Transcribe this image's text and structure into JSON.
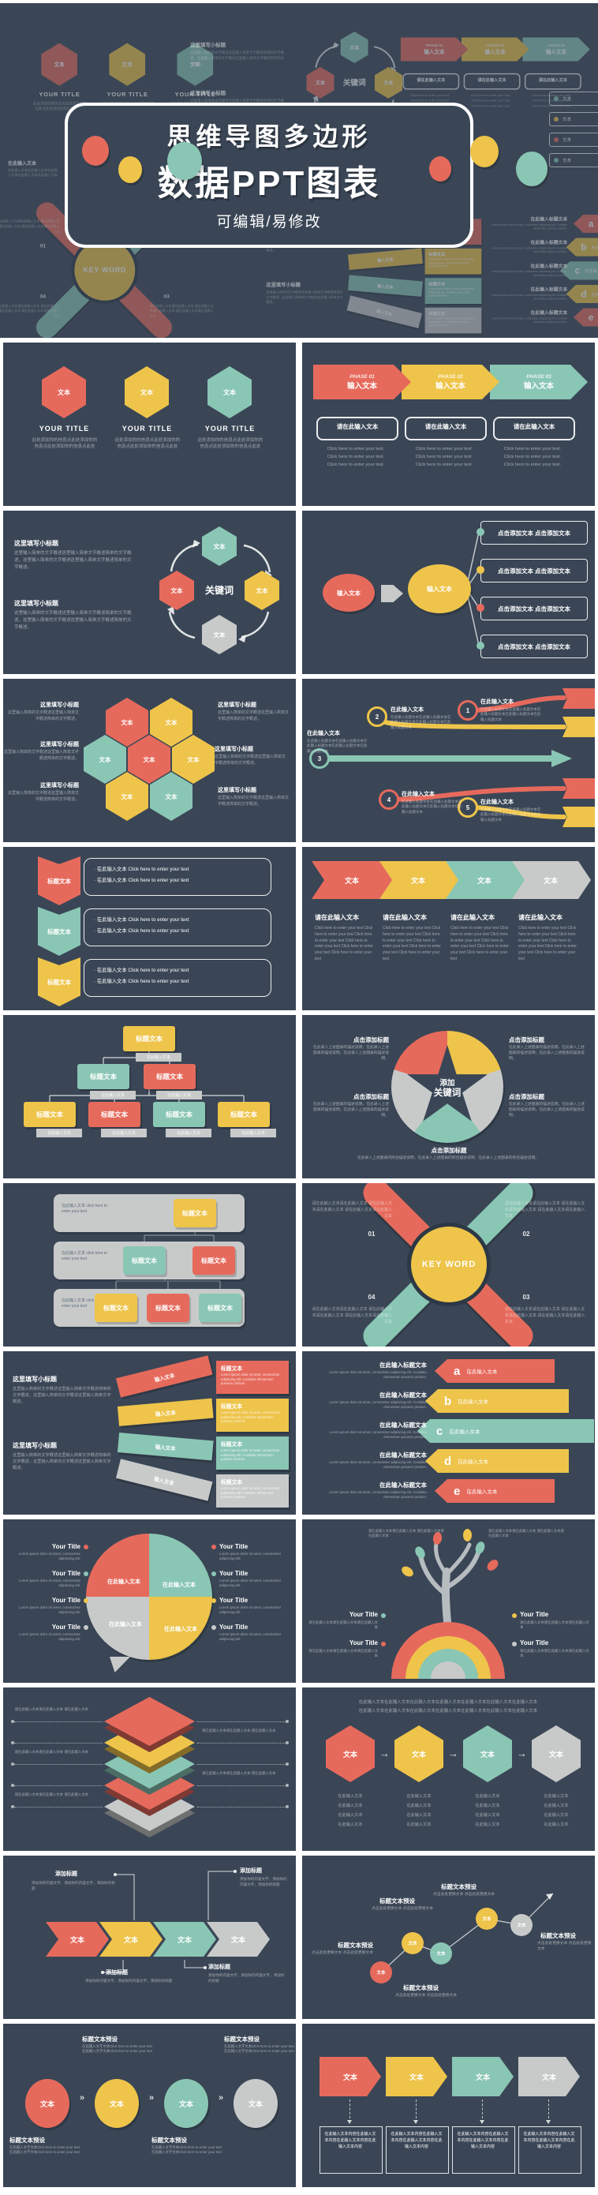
{
  "colors": {
    "navy": "#3a4656",
    "deep": "#2c3845",
    "red": "#e66a5c",
    "yellow": "#eec44a",
    "teal": "#8ac6b4",
    "gray": "#c8caca"
  },
  "hero": {
    "title_line1": "思维导图多边形",
    "title_line2": "数据PPT图表",
    "subtitle": "可编辑/易修改",
    "side_note_heading": "在此输入文本",
    "side_note_para": "在此输入文本在此输入文本在此输入文本在此输入文本在此输入文本",
    "edge_box_label": "文本"
  },
  "slides": [
    {
      "type": "hex-trio",
      "label": "文本",
      "title": "YOUR TITLE",
      "caption": "此处添加你的信息点此处添加你的信息点此处添加你的信息点此处"
    },
    {
      "type": "phase-arrows",
      "phases": [
        "PHASE 01",
        "PHASE 02",
        "PHASE 03"
      ],
      "label": "输入文本",
      "box": "请在此输入文本",
      "click": "Click here to enter your text."
    },
    {
      "type": "cycle-keyword",
      "heading": "这里填写小标题",
      "para": "这里输入简单的文字概述这里输入简单文字概述简单的文字概述，这里输入简单的文字概述这里输入简单文字概述简单的文字概述。",
      "center": "关键词",
      "label": "文本"
    },
    {
      "type": "branch-flow",
      "start": "输入文本",
      "mid": "输入文本",
      "box": "点击添加文本 点击添加文本"
    },
    {
      "type": "honeycomb",
      "label": "文本",
      "heading": "这里填写小标题",
      "para": "这里输入简单的文字概述这里输入简单文字概述简单的文字概述。"
    },
    {
      "type": "circuit",
      "nums": [
        "1",
        "2",
        "3",
        "4",
        "5"
      ],
      "heading": "在此输入文本",
      "para": "在此输入标题文本在此输入标题文本在此输入标题文本在此输入标题文本在此输入标题文本"
    },
    {
      "type": "ribbon-list",
      "label": "标题文本",
      "line": "· 在此输入文本 Click here to enter your text"
    },
    {
      "type": "chevron-cols",
      "label": "文本",
      "heading": "请在此输入文本",
      "para": "Click here to enter your text Click here to enter your text Click here to enter your text Click here to enter your text Click here to enter your text Click here to enter your text"
    },
    {
      "type": "org-chart",
      "box": "标题文本",
      "tag": "在此输入文本"
    },
    {
      "type": "star-pie",
      "center_top": "添加",
      "center_bottom": "关键词",
      "heading": "点击添加标题",
      "para": "在此录入上述图表的描述说明，在此录入上述图表的描述说明，在此录入上述图表的描述说明。",
      "para_bottom": "在此录入上述图表的综合描述说明，在此录入上述图表的综合描述说明，在此录入上述图表的综合描述说明。"
    },
    {
      "type": "bar-tree",
      "bar_label": "在此输入文本 click here to enter your text",
      "box": "标题文本"
    },
    {
      "type": "x-keyword",
      "center": "KEY WORD",
      "nums": [
        "01",
        "02",
        "03",
        "04"
      ],
      "corner": "请在此输入文本请在此输入文本 请在此输入文本请在此输入文本 请在此输入文本请在此输入文本"
    },
    {
      "type": "fan-banners",
      "heading": "这里填写小标题",
      "para": "这里输入简单的文字概述这里输入简单文字概述简单的文字概述，这里输入简单的文字概述这里输入简单文字概述。",
      "strip": "输入文本",
      "box_heading": "标题文本",
      "box_para": "Lorem ipsum dolor sit amet, consectetur adipiscing elit. Curabitur elementum posuere pretium."
    },
    {
      "type": "abcde",
      "letters": [
        "a",
        "b",
        "c",
        "d",
        "e"
      ],
      "strip": "在此输入文本",
      "heading": "在此输入标题文本",
      "para": "Lorem ipsum dolor sit amet, consectetur adipiscing elit. Curabitur elementum posuere pretium."
    },
    {
      "type": "puzzle",
      "piece": "在此输入文本",
      "heading": "Your Title",
      "para": "Lorem ipsum dolor sit amet, consectetur adipiscing elit."
    },
    {
      "type": "leaf-tree",
      "heading": "Your Title",
      "para": "请在此输入文本请在此输入文本请在此输入文本",
      "corner": "请在此输入文本请在此输入文本 请在此输入文本请在此输入文本"
    },
    {
      "type": "layer-stack",
      "text": "请在此输入文本请在此输入文本 请在此输入文本"
    },
    {
      "type": "hex-flow",
      "top": "在此输入文本在此输入文本在此输入文本在此输入文本在此输入文本在此输入文本在此输入文本",
      "label": "文本",
      "item": "在此输入文本",
      "arrow": "→"
    },
    {
      "type": "chevron-callouts",
      "label": "文本",
      "heading": "添加标题",
      "para": "添加你的内容文字，添加你的内容文字，添加你的标题"
    },
    {
      "type": "rising-dots",
      "dot": "文本",
      "heading": "标题文本预设",
      "para": "点击此处更换文本 点击此处更换文本"
    },
    {
      "type": "circle-steps",
      "dot": "文本",
      "heading": "标题文本预设",
      "para": "在此输入文字文本Click here to enter your text 在此输入文字文本Click here to enter your text",
      "arrow": "»"
    },
    {
      "type": "pentagon-boxes",
      "label": "文本",
      "box": "在此输入文本内容在此输入文本内容在此输入文本内容在此输入文本内容"
    }
  ]
}
